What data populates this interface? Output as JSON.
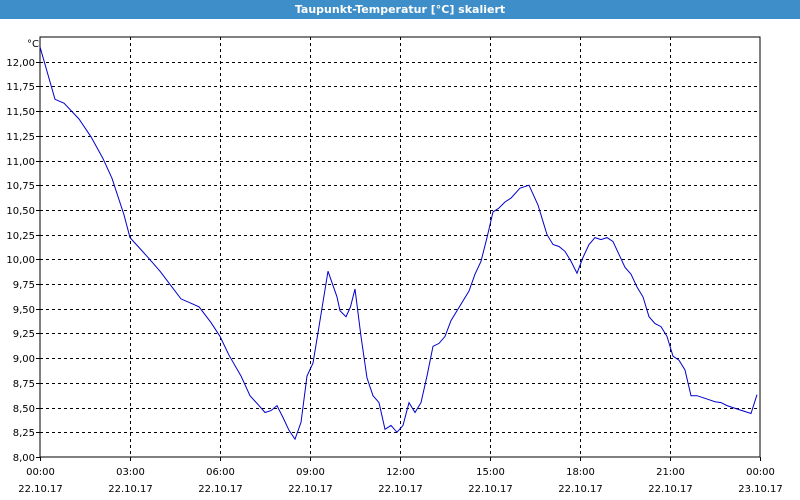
{
  "window": {
    "title": "Taupunkt-Temperatur [°C] skaliert"
  },
  "chart_data": {
    "type": "line",
    "title": "Taupunkt-Temperatur [°C] skaliert",
    "ylabel": "°C",
    "xlabel": "",
    "ylim": [
      8.0,
      12.25
    ],
    "xlim": [
      0,
      24
    ],
    "grid": true,
    "line_color": "#0000cc",
    "y_ticks": [
      "8,00",
      "8,25",
      "8,50",
      "8,75",
      "9,00",
      "9,25",
      "9,50",
      "9,75",
      "10,00",
      "10,25",
      "10,50",
      "10,75",
      "11,00",
      "11,25",
      "11,50",
      "11,75",
      "12,00"
    ],
    "x_ticks": [
      {
        "time": "00:00",
        "date": "22.10.17"
      },
      {
        "time": "03:00",
        "date": "22.10.17"
      },
      {
        "time": "06:00",
        "date": "22.10.17"
      },
      {
        "time": "09:00",
        "date": "22.10.17"
      },
      {
        "time": "12:00",
        "date": "22.10.17"
      },
      {
        "time": "15:00",
        "date": "22.10.17"
      },
      {
        "time": "18:00",
        "date": "22.10.17"
      },
      {
        "time": "21:00",
        "date": "22.10.17"
      },
      {
        "time": "00:00",
        "date": "23.10.17"
      }
    ],
    "series": [
      {
        "x": [
          0.0,
          0.5,
          0.8,
          1.3,
          1.7,
          2.1,
          2.4,
          2.8,
          3.0,
          3.3,
          3.6,
          4.0,
          4.3,
          4.7,
          5.0,
          5.3,
          5.7,
          6.0,
          6.3,
          6.7,
          7.0,
          7.3,
          7.5,
          7.7,
          7.9,
          8.1,
          8.3,
          8.5,
          8.7,
          8.9,
          9.1,
          9.3,
          9.6,
          9.9,
          10.0,
          10.2,
          10.35,
          10.5,
          10.7,
          10.9,
          11.1,
          11.3,
          11.5,
          11.7,
          11.9,
          12.1,
          12.3,
          12.5,
          12.7,
          12.9,
          13.1,
          13.3,
          13.5,
          13.7,
          13.9,
          14.1,
          14.3,
          14.5,
          14.7,
          14.9,
          15.1,
          15.3,
          15.5,
          15.7,
          16.0,
          16.3,
          16.6,
          16.8,
          16.9,
          17.1,
          17.3,
          17.5,
          17.7,
          17.9,
          18.1,
          18.3,
          18.5,
          18.7,
          18.9,
          19.1,
          19.3,
          19.5,
          19.7,
          19.9,
          20.1,
          20.3,
          20.5,
          20.7,
          20.9,
          21.1,
          21.3,
          21.5,
          21.7,
          21.9,
          22.1,
          22.3,
          22.5,
          22.7,
          22.9,
          23.1,
          23.3,
          23.5,
          23.7,
          23.9
        ],
        "y": [
          12.15,
          11.62,
          11.58,
          11.42,
          11.24,
          11.02,
          10.82,
          10.45,
          10.22,
          10.12,
          10.02,
          9.88,
          9.76,
          9.6,
          9.56,
          9.52,
          9.36,
          9.22,
          9.03,
          8.82,
          8.62,
          8.52,
          8.45,
          8.47,
          8.52,
          8.4,
          8.27,
          8.18,
          8.35,
          8.82,
          8.95,
          9.32,
          9.88,
          9.62,
          9.48,
          9.42,
          9.52,
          9.7,
          9.22,
          8.8,
          8.62,
          8.55,
          8.28,
          8.32,
          8.25,
          8.32,
          8.55,
          8.45,
          8.55,
          8.82,
          9.12,
          9.15,
          9.22,
          9.38,
          9.48,
          9.58,
          9.68,
          9.85,
          9.98,
          10.22,
          10.48,
          10.52,
          10.58,
          10.62,
          10.72,
          10.75,
          10.55,
          10.35,
          10.25,
          10.15,
          10.13,
          10.08,
          9.98,
          9.86,
          10.02,
          10.15,
          10.22,
          10.2,
          10.22,
          10.18,
          10.05,
          9.92,
          9.85,
          9.72,
          9.62,
          9.42,
          9.35,
          9.32,
          9.22,
          9.02,
          8.98,
          8.88,
          8.62,
          8.62,
          8.6,
          8.58,
          8.56,
          8.55,
          8.52,
          8.5,
          8.48,
          8.46,
          8.44,
          8.63
        ]
      }
    ]
  }
}
